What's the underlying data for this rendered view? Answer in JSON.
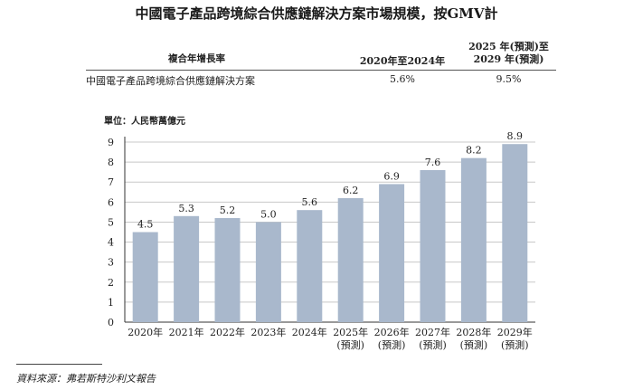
{
  "title": "中國電子產品跨境綜合供應鏈解決方案市場規模，按GMV計",
  "cagr_table": {
    "header_label": "複合年增長率",
    "col_a_header": "2020年至2024年",
    "col_b_header_line1": "2025 年(預測)至",
    "col_b_header_line2": "2029 年(預測)",
    "row_label": "中國電子產品跨境綜合供應鏈解決方案",
    "col_a_value": "5.6%",
    "col_b_value": "9.5%"
  },
  "unit_label": "單位：人民幣萬億元",
  "source": "資料來源：弗若斯特沙利文報告",
  "colors": {
    "bar": "#a9b8cc",
    "grid": "#c8c8c8",
    "axis": "#333333"
  },
  "chart_data": {
    "type": "bar",
    "categories": [
      "2020年",
      "2021年",
      "2022年",
      "2023年",
      "2024年",
      "2025年",
      "2026年",
      "2027年",
      "2028年",
      "2029年"
    ],
    "category_sublabels": [
      "",
      "",
      "",
      "",
      "",
      "(預測)",
      "(預測)",
      "(預測)",
      "(預測)",
      "(預測)"
    ],
    "values": [
      4.5,
      5.3,
      5.2,
      5.0,
      5.6,
      6.2,
      6.9,
      7.6,
      8.2,
      8.9
    ],
    "value_labels": [
      "4.5",
      "5.3",
      "5.2",
      "5.0",
      "5.6",
      "6.2",
      "6.9",
      "7.6",
      "8.2",
      "8.9"
    ],
    "ylim": [
      0,
      9
    ],
    "yticks": [
      0,
      1,
      2,
      3,
      4,
      5,
      6,
      7,
      8,
      9
    ],
    "grid": true,
    "title": "中國電子產品跨境綜合供應鏈解決方案市場規模，按GMV計",
    "ylabel": "單位：人民幣萬億元",
    "xlabel": ""
  }
}
